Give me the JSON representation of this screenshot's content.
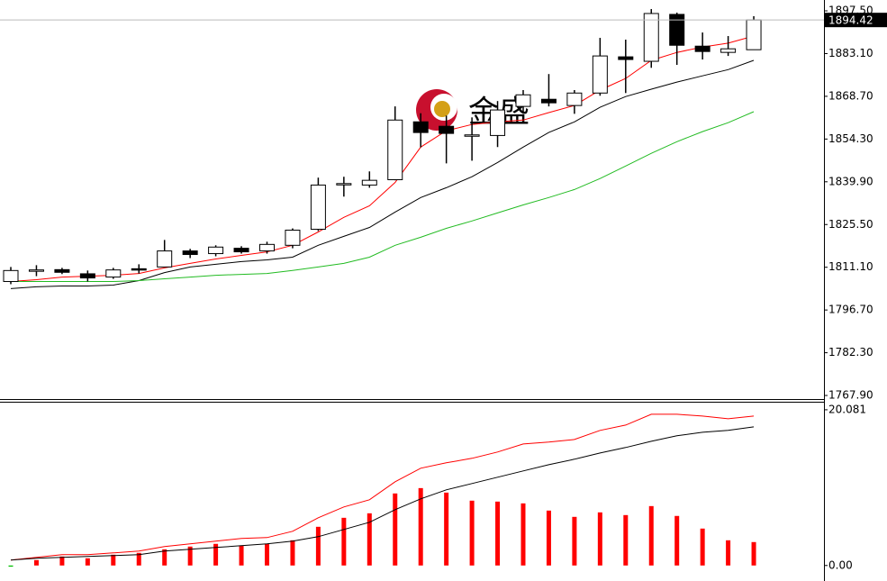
{
  "watermark": "金盛",
  "chart_data": [
    {
      "type": "candlestick",
      "open": [
        1806.3,
        1810.0,
        1810.3,
        1808.9,
        1807.8,
        1810.6,
        1811.2,
        1816.6,
        1815.7,
        1817.5,
        1816.6,
        1818.5,
        1823.9,
        1839.1,
        1838.8,
        1840.6,
        1860.1,
        1858.6,
        1855.5,
        1855.5,
        1865.3,
        1867.7,
        1865.6,
        1869.8,
        1882.0,
        1880.5,
        1896.3,
        1885.6,
        1883.5,
        1884.4
      ],
      "high": [
        1811.2,
        1811.8,
        1810.9,
        1810.0,
        1810.9,
        1812.1,
        1820.3,
        1817.3,
        1818.5,
        1818.2,
        1819.7,
        1824.2,
        1841.3,
        1841.6,
        1843.4,
        1865.3,
        1863.0,
        1862.2,
        1861.6,
        1867.1,
        1870.8,
        1876.2,
        1870.8,
        1888.4,
        1887.8,
        1898.1,
        1896.9,
        1890.2,
        1889.0,
        1895.7
      ],
      "low": [
        1805.4,
        1808.1,
        1808.8,
        1806.3,
        1807.2,
        1809.0,
        1811.2,
        1814.2,
        1814.8,
        1815.7,
        1815.7,
        1817.5,
        1823.3,
        1834.9,
        1837.9,
        1840.4,
        1851.5,
        1846.1,
        1847.0,
        1851.6,
        1862.8,
        1865.3,
        1862.8,
        1868.9,
        1869.8,
        1878.3,
        1879.3,
        1881.1,
        1882.3,
        1884.4
      ],
      "close": [
        1810.0,
        1810.2,
        1809.4,
        1807.5,
        1810.2,
        1810.5,
        1816.6,
        1815.4,
        1817.9,
        1816.3,
        1818.8,
        1823.6,
        1838.8,
        1839.3,
        1840.4,
        1860.7,
        1856.5,
        1856.2,
        1855.7,
        1864.1,
        1869.2,
        1866.5,
        1869.8,
        1882.3,
        1881.1,
        1896.6,
        1885.9,
        1883.8,
        1884.7,
        1894.42
      ],
      "series": [
        {
          "color": "#ff0000",
          "values": [
            1806.3,
            1806.9,
            1807.8,
            1808.1,
            1808.4,
            1809.0,
            1810.9,
            1812.4,
            1813.9,
            1815.1,
            1816.3,
            1818.5,
            1823.0,
            1827.9,
            1831.8,
            1839.7,
            1851.6,
            1857.1,
            1859.2,
            1860.1,
            1860.7,
            1863.2,
            1865.6,
            1870.8,
            1874.7,
            1880.8,
            1883.5,
            1885.3,
            1886.6,
            1889.0
          ]
        },
        {
          "color": "#000000",
          "values": [
            1803.9,
            1804.5,
            1804.8,
            1804.8,
            1805.1,
            1806.6,
            1809.3,
            1811.2,
            1812.1,
            1813.0,
            1813.6,
            1814.5,
            1818.5,
            1821.5,
            1824.5,
            1829.7,
            1834.6,
            1837.9,
            1841.6,
            1846.4,
            1851.6,
            1856.5,
            1860.1,
            1865.0,
            1868.6,
            1871.1,
            1873.5,
            1875.6,
            1877.7,
            1880.8
          ]
        },
        {
          "color": "#22bb22",
          "values": [
            1806.3,
            1806.3,
            1806.3,
            1806.3,
            1806.3,
            1806.6,
            1807.2,
            1807.8,
            1808.4,
            1808.7,
            1809.0,
            1810.0,
            1811.2,
            1812.4,
            1814.5,
            1818.5,
            1821.2,
            1824.2,
            1826.7,
            1829.4,
            1832.1,
            1834.6,
            1837.3,
            1841.0,
            1845.2,
            1849.5,
            1853.4,
            1856.8,
            1859.8,
            1863.5
          ]
        }
      ],
      "price_line": 1894.42,
      "ylim": [
        1767.0,
        1901.15
      ],
      "yticks": [
        {
          "value": 1897.5,
          "label": "1897.50"
        },
        {
          "value": 1883.1,
          "label": "1883.10"
        },
        {
          "value": 1868.7,
          "label": "1868.70"
        },
        {
          "value": 1854.3,
          "label": "1854.30"
        },
        {
          "value": 1839.9,
          "label": "1839.90"
        },
        {
          "value": 1825.5,
          "label": "1825.50"
        },
        {
          "value": 1811.1,
          "label": "1811.10"
        },
        {
          "value": 1796.7,
          "label": "1796.70"
        },
        {
          "value": 1782.3,
          "label": "1782.30"
        },
        {
          "value": 1767.9,
          "label": "1767.90"
        }
      ]
    },
    {
      "type": "bar",
      "values": [
        -0.15,
        0.7,
        1.16,
        0.93,
        1.39,
        1.63,
        2.09,
        2.44,
        2.79,
        2.55,
        2.79,
        3.25,
        4.99,
        6.15,
        6.73,
        9.29,
        9.98,
        9.4,
        8.36,
        8.24,
        8.01,
        7.08,
        6.27,
        6.85,
        6.5,
        7.66,
        6.39,
        4.76,
        3.25,
        3.02
      ],
      "color": "#ff0000",
      "negative_color": "#00c000",
      "series": [
        {
          "color": "#ff0000",
          "values": [
            0.7,
            1.04,
            1.39,
            1.39,
            1.63,
            1.86,
            2.44,
            2.79,
            3.13,
            3.48,
            3.6,
            4.41,
            6.15,
            7.55,
            8.48,
            10.8,
            12.54,
            13.24,
            13.82,
            14.63,
            15.67,
            15.91,
            16.25,
            17.42,
            18.11,
            19.5,
            19.5,
            19.27,
            18.92,
            19.27
          ]
        },
        {
          "color": "#000000",
          "values": [
            0.7,
            0.93,
            1.04,
            1.16,
            1.28,
            1.39,
            1.86,
            2.09,
            2.32,
            2.55,
            2.79,
            3.13,
            3.72,
            4.64,
            5.57,
            7.2,
            8.59,
            9.75,
            10.57,
            11.38,
            12.19,
            13.0,
            13.7,
            14.51,
            15.21,
            16.02,
            16.72,
            17.18,
            17.42,
            17.88
          ]
        }
      ],
      "ylim": [
        -2.0,
        21.0
      ],
      "yticks": [
        {
          "value": 20.081,
          "label": "20.081"
        },
        {
          "value": 0,
          "label": "0.00"
        }
      ]
    }
  ]
}
